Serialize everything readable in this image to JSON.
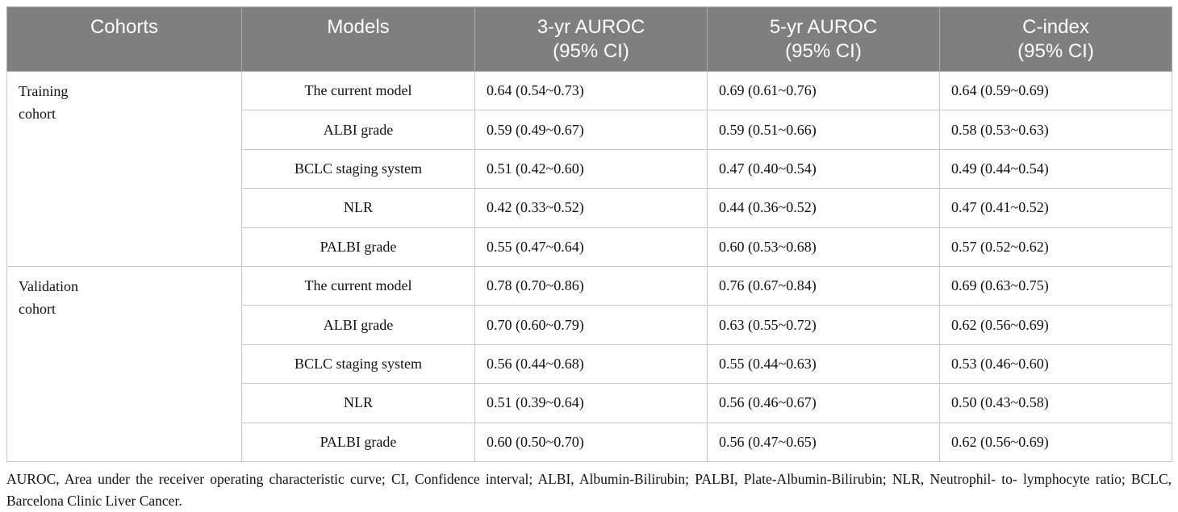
{
  "table": {
    "headers": [
      [
        "Cohorts"
      ],
      [
        "Models"
      ],
      [
        "3-yr AUROC",
        "(95% CI)"
      ],
      [
        "5-yr AUROC",
        "(95% CI)"
      ],
      [
        "C-index",
        "(95% CI)"
      ]
    ],
    "groups": [
      {
        "cohort": [
          "Training",
          "cohort"
        ],
        "rows": [
          [
            "The current model",
            "0.64 (0.54~0.73)",
            "0.69 (0.61~0.76)",
            "0.64 (0.59~0.69)"
          ],
          [
            "ALBI grade",
            "0.59 (0.49~0.67)",
            "0.59 (0.51~0.66)",
            "0.58 (0.53~0.63)"
          ],
          [
            "BCLC staging system",
            "0.51 (0.42~0.60)",
            "0.47 (0.40~0.54)",
            "0.49 (0.44~0.54)"
          ],
          [
            "NLR",
            "0.42 (0.33~0.52)",
            "0.44 (0.36~0.52)",
            "0.47 (0.41~0.52)"
          ],
          [
            "PALBI grade",
            "0.55 (0.47~0.64)",
            "0.60 (0.53~0.68)",
            "0.57 (0.52~0.62)"
          ]
        ]
      },
      {
        "cohort": [
          "Validation",
          "cohort"
        ],
        "rows": [
          [
            "The current model",
            "0.78 (0.70~0.86)",
            "0.76 (0.67~0.84)",
            "0.69 (0.63~0.75)"
          ],
          [
            "ALBI grade",
            "0.70 (0.60~0.79)",
            "0.63 (0.55~0.72)",
            "0.62 (0.56~0.69)"
          ],
          [
            "BCLC staging system",
            "0.56 (0.44~0.68)",
            "0.55 (0.44~0.63)",
            "0.53 (0.46~0.60)"
          ],
          [
            "NLR",
            "0.51 (0.39~0.64)",
            "0.56 (0.46~0.67)",
            "0.50 (0.43~0.58)"
          ],
          [
            "PALBI grade",
            "0.60 (0.50~0.70)",
            "0.56 (0.47~0.65)",
            "0.62 (0.56~0.69)"
          ]
        ]
      }
    ],
    "footnote": "AUROC, Area under the receiver operating characteristic curve; CI, Confidence interval; ALBI, Albumin-Bilirubin; PALBI, Plate-Albumin-Bilirubin; NLR, Neutrophil- to- lymphocyte ratio; BCLC, Barcelona Clinic Liver Cancer."
  }
}
